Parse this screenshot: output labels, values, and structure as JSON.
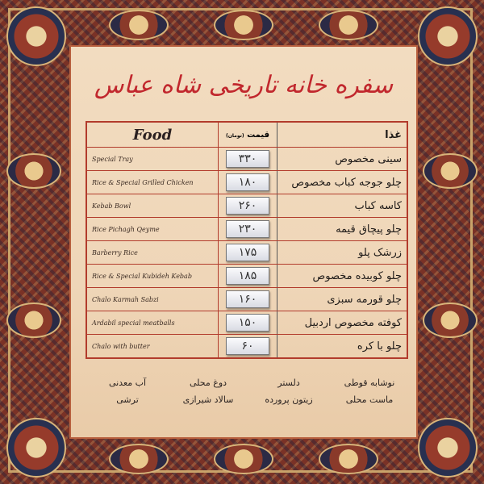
{
  "title": "سفره خانه تاریخی شاه عباس",
  "table": {
    "header": {
      "food_en": "Food",
      "price": "قیمت",
      "price_unit": "(تومان)",
      "food_fa": "غذا"
    },
    "rows": [
      {
        "en": "Special Tray",
        "price": "۳۳۰",
        "fa": "سینی مخصوص"
      },
      {
        "en": "Rice & Special Grilled Chicken",
        "price": "۱۸۰",
        "fa": "چلو جوجه کباب مخصوص"
      },
      {
        "en": "Kebab Bowl",
        "price": "۲۶۰",
        "fa": "کاسه کباب"
      },
      {
        "en": "Rice Pichagh Qeyme",
        "price": "۲۳۰",
        "fa": "چلو پیچاق قیمه"
      },
      {
        "en": "Barberry Rice",
        "price": "۱۷۵",
        "fa": "زرشک پلو"
      },
      {
        "en": "Rice & Special Kubideh Kebab",
        "price": "۱۸۵",
        "fa": "چلو کوبیده مخصوص"
      },
      {
        "en": "Chalo Karmah Sabzi",
        "price": "۱۶۰",
        "fa": "چلو قورمه سبزی"
      },
      {
        "en": "Ardabil special meatballs",
        "price": "۱۵۰",
        "fa": "کوفته مخصوص اردبیل"
      },
      {
        "en": "Chalo with butter",
        "price": "۶۰",
        "fa": "چلو با کره"
      }
    ]
  },
  "extras": [
    "نوشابه قوطی",
    "دلستر",
    "دوغ محلی",
    "آب معدنی",
    "ماست محلی",
    "زیتون پرورده",
    "سالاد شیرازی",
    "ترشی"
  ],
  "colors": {
    "title": "#c1272d",
    "border": "#b23b2c",
    "panel": "#f2dcc0",
    "frame": "#7a3226"
  }
}
